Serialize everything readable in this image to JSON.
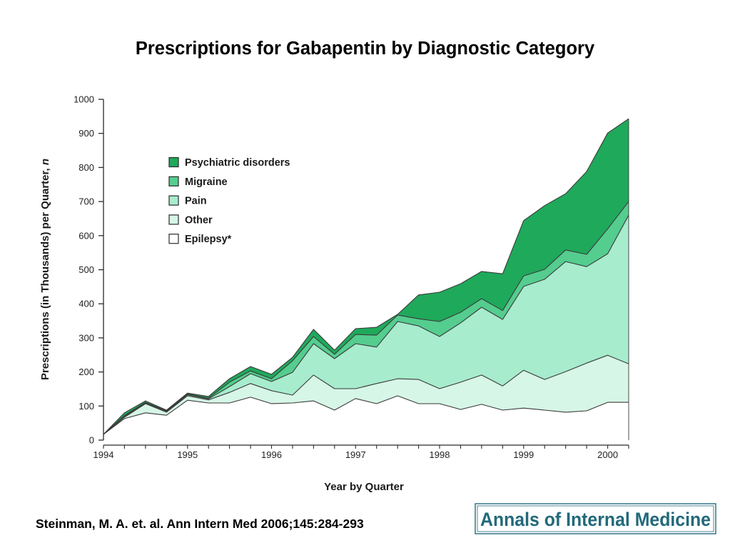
{
  "page": {
    "source": "Steinman, M. A. et. al. Ann Intern Med 2006;145:284-293",
    "logo_text": "Annals of Internal Medicine",
    "colors": {
      "axis": "#2b2b2b",
      "outline": "#3a3a3a",
      "logo": "#22697a",
      "logo_border": "#3f7f8f"
    }
  },
  "chart_data": {
    "type": "area",
    "stacked": true,
    "title": "Prescriptions for Gabapentin by Diagnostic Category",
    "xlabel": "Year by Quarter",
    "ylabel": "Prescriptions (in Thousands) per Quarter, n",
    "xlim": [
      1994,
      2000.25
    ],
    "ylim": [
      0,
      1000
    ],
    "grid": false,
    "legend_position": "upper-left",
    "xticks": [
      1994,
      1995,
      1996,
      1997,
      1998,
      1999,
      2000
    ],
    "xtick_labels": [
      "1994",
      "1995",
      "1996",
      "1997",
      "1998",
      "1999",
      "2000"
    ],
    "yticks": [
      0,
      100,
      200,
      300,
      400,
      500,
      600,
      700,
      800,
      900,
      1000
    ],
    "ytick_labels": [
      "0",
      "100",
      "200",
      "300",
      "400",
      "500",
      "600",
      "700",
      "800",
      "900",
      "1000"
    ],
    "x": [
      1994,
      1994.25,
      1994.5,
      1994.75,
      1995,
      1995.25,
      1995.5,
      1995.75,
      1996,
      1996.25,
      1996.5,
      1996.75,
      1997,
      1997.25,
      1997.5,
      1997.75,
      1998,
      1998.25,
      1998.5,
      1998.75,
      1999,
      1999.25,
      1999.5,
      1999.75,
      2000,
      2000.25
    ],
    "series": [
      {
        "name": "Epilepsy*",
        "color": "#ffffff",
        "values": [
          17,
          63,
          80,
          73,
          117,
          109,
          109,
          126,
          107,
          109,
          115,
          88,
          122,
          107,
          130,
          107,
          107,
          90,
          105,
          88,
          94,
          88,
          82,
          86,
          111,
          111
        ]
      },
      {
        "name": "Other",
        "color": "#d6f6e7",
        "values": [
          0,
          4,
          27,
          9,
          13,
          9,
          31,
          40,
          38,
          23,
          76,
          63,
          29,
          59,
          50,
          71,
          44,
          80,
          86,
          71,
          111,
          90,
          119,
          140,
          138,
          113
        ]
      },
      {
        "name": "Pain",
        "color": "#a7eccd",
        "values": [
          0,
          3,
          2,
          2,
          3,
          3,
          17,
          29,
          27,
          67,
          92,
          88,
          132,
          107,
          168,
          157,
          153,
          174,
          199,
          195,
          246,
          294,
          323,
          283,
          298,
          436
        ]
      },
      {
        "name": "Migraine",
        "color": "#54cd8e",
        "values": [
          0,
          2,
          2,
          2,
          2,
          2,
          13,
          8,
          8,
          34,
          21,
          13,
          27,
          35,
          19,
          21,
          44,
          31,
          25,
          26,
          31,
          29,
          34,
          36,
          73,
          40
        ]
      },
      {
        "name": "Psychiatric disorders",
        "color": "#1fa95b",
        "values": [
          0,
          8,
          4,
          2,
          3,
          5,
          10,
          13,
          13,
          10,
          21,
          12,
          17,
          23,
          2,
          70,
          86,
          84,
          80,
          108,
          162,
          187,
          165,
          243,
          281,
          243
        ]
      }
    ]
  }
}
